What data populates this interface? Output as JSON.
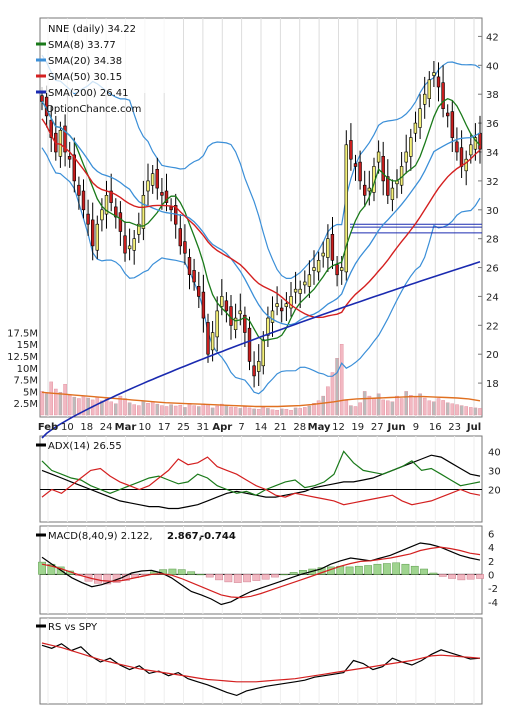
{
  "chart_data": [
    {
      "type": "candlestick",
      "panel": "price",
      "title": "NNE (daily) 34.22",
      "watermark": "OptionChance.com",
      "legend": [
        {
          "label": "SMA(8) 33.77",
          "color": "#1a7a1a"
        },
        {
          "label": "SMA(20) 34.38",
          "color": "#3b8fd8"
        },
        {
          "label": "SMA(50) 30.15",
          "color": "#d42020"
        },
        {
          "label": "SMA(200) 26.41",
          "color": "#1a2ab0"
        }
      ],
      "ylim": [
        16,
        43
      ],
      "yticks": [
        18,
        20,
        22,
        24,
        26,
        28,
        30,
        32,
        34,
        36,
        38,
        40,
        42
      ],
      "xlabels": [
        "Feb",
        "10",
        "18",
        "24",
        "Mar",
        "10",
        "17",
        "25",
        "31",
        "Apr",
        "7",
        "14",
        "21",
        "28",
        "May",
        "12",
        "19",
        "27",
        "Jun",
        "9",
        "16",
        "23",
        "Jul"
      ],
      "horizontal_levels": [
        29.0,
        28.8,
        28.4
      ],
      "closes": [
        37.5,
        36.5,
        35.0,
        34.0,
        35.5,
        34.0,
        33.5,
        32.0,
        31.0,
        30.0,
        29.0,
        27.5,
        29.0,
        30.0,
        31.0,
        30.5,
        29.5,
        28.5,
        27.0,
        27.5,
        28.0,
        29.0,
        31.0,
        32.0,
        32.5,
        31.5,
        31.0,
        30.5,
        30.0,
        29.0,
        27.5,
        27.0,
        25.5,
        25.0,
        24.0,
        22.5,
        20.0,
        21.5,
        23.0,
        24.0,
        23.0,
        22.0,
        22.5,
        23.0,
        21.5,
        19.5,
        18.5,
        19.5,
        21.0,
        22.5,
        23.0,
        23.5,
        23.0,
        23.5,
        24.0,
        24.5,
        24.5,
        25.0,
        25.5,
        26.0,
        26.5,
        27.0,
        28.0,
        26.5,
        25.5,
        26.0,
        34.5,
        33.5,
        33.0,
        32.0,
        31.0,
        31.5,
        33.0,
        34.0,
        32.0,
        31.0,
        31.5,
        32.0,
        33.0,
        34.0,
        35.0,
        36.0,
        37.0,
        38.0,
        39.0,
        39.5,
        38.5,
        37.0,
        36.5,
        35.0,
        34.0,
        33.0,
        33.5,
        34.5,
        35.0,
        34.2
      ]
    },
    {
      "type": "bar",
      "panel": "volume",
      "yticks": [
        "2.5M",
        "5M",
        "7.5M",
        "10M",
        "12.5M",
        "15M",
        "17.5M"
      ],
      "ylim": [
        0,
        18000000
      ],
      "values_millions": [
        5.0,
        4.5,
        7.0,
        5.5,
        4.8,
        6.5,
        4.2,
        3.8,
        3.5,
        4.0,
        3.6,
        3.2,
        3.8,
        3.0,
        3.4,
        2.8,
        2.4,
        4.0,
        3.5,
        2.6,
        2.2,
        2.0,
        3.0,
        2.5,
        2.8,
        2.3,
        2.0,
        1.8,
        2.2,
        1.9,
        2.1,
        1.6,
        2.5,
        2.0,
        1.8,
        2.4,
        2.2,
        1.5,
        1.9,
        2.3,
        2.0,
        1.7,
        1.6,
        1.4,
        1.8,
        1.5,
        1.3,
        1.2,
        1.6,
        1.4,
        1.1,
        1.0,
        1.3,
        1.2,
        1.0,
        1.5,
        1.4,
        1.6,
        1.9,
        2.5,
        3.0,
        4.0,
        6.0,
        9.0,
        12.0,
        15.0,
        3.0,
        2.0,
        1.8,
        2.6,
        5.0,
        4.0,
        3.5,
        4.5,
        3.2,
        3.0,
        2.8,
        4.0,
        3.5,
        5.0,
        4.2,
        3.8,
        4.5,
        3.6,
        3.0,
        2.8,
        3.5,
        3.1,
        2.6,
        2.4,
        2.2,
        2.0,
        1.8,
        1.6,
        1.5,
        1.4
      ],
      "volume_ma_millions": [
        4.8,
        4.6,
        4.4,
        4.2,
        4.0,
        3.8,
        3.6,
        3.4,
        3.2,
        3.0,
        2.8,
        2.6,
        2.5,
        2.4,
        2.3,
        2.2,
        2.1,
        2.0,
        1.9,
        1.8,
        1.8,
        1.8,
        1.9,
        2.0,
        2.2,
        2.5,
        2.8,
        3.2,
        3.4,
        3.5,
        3.6,
        3.7,
        3.8,
        3.9,
        3.9,
        3.8,
        3.7,
        3.6,
        3.4,
        3.0
      ]
    },
    {
      "type": "line",
      "panel": "adx",
      "label": "ADX(14) 26.55",
      "ylim": [
        5,
        46
      ],
      "yticks": [
        20,
        30,
        40
      ],
      "reference_line": 20,
      "series": [
        {
          "name": "ADX",
          "color": "#000000",
          "values": [
            30,
            28,
            26,
            24,
            22,
            20,
            18,
            16,
            14,
            13,
            12,
            11,
            11,
            10,
            10,
            11,
            12,
            14,
            16,
            18,
            19,
            18,
            17,
            16,
            16,
            17,
            18,
            19,
            21,
            22,
            23,
            24,
            24,
            25,
            26,
            28,
            30,
            32,
            34,
            36,
            38,
            37,
            34,
            31,
            28,
            27
          ]
        },
        {
          "name": "+DI",
          "color": "#1a7a1a",
          "values": [
            35,
            30,
            28,
            26,
            25,
            22,
            20,
            18,
            20,
            22,
            24,
            26,
            27,
            25,
            23,
            24,
            28,
            26,
            22,
            20,
            18,
            19,
            17,
            20,
            22,
            24,
            25,
            21,
            22,
            24,
            28,
            40,
            34,
            30,
            29,
            28,
            30,
            32,
            35,
            30,
            31,
            28,
            25,
            22,
            23,
            24
          ]
        },
        {
          "name": "-DI",
          "color": "#d42020",
          "values": [
            16,
            20,
            18,
            22,
            26,
            30,
            31,
            27,
            24,
            22,
            20,
            22,
            26,
            30,
            36,
            33,
            34,
            37,
            32,
            30,
            28,
            25,
            22,
            20,
            17,
            16,
            18,
            17,
            16,
            15,
            14,
            12,
            13,
            14,
            15,
            16,
            17,
            14,
            12,
            13,
            14,
            16,
            18,
            20,
            18,
            17
          ]
        }
      ]
    },
    {
      "type": "line",
      "panel": "macd",
      "label": "MACD(8,40,9) 2.122,",
      "values_label": [
        "2.867,",
        "-0.744"
      ],
      "values_label_colors": [
        "#d42020",
        "#1a2ab0"
      ],
      "ylim": [
        -5.5,
        6.5
      ],
      "yticks": [
        -4,
        -2,
        0,
        2,
        4,
        6
      ],
      "series": [
        {
          "name": "MACD",
          "color": "#000000",
          "values": [
            2.5,
            1.5,
            0.5,
            -0.5,
            -1.2,
            -1.8,
            -1.5,
            -1.0,
            -0.5,
            0.2,
            0.5,
            0.6,
            0.2,
            -0.5,
            -1.5,
            -2.5,
            -3.0,
            -3.6,
            -4.4,
            -4.0,
            -3.2,
            -2.5,
            -2.0,
            -1.5,
            -1.0,
            -0.5,
            0.0,
            0.4,
            0.8,
            1.5,
            2.0,
            2.4,
            2.2,
            2.0,
            2.4,
            2.8,
            3.4,
            4.0,
            4.6,
            4.4,
            4.0,
            3.4,
            2.8,
            2.4,
            2.1
          ]
        },
        {
          "name": "Signal",
          "color": "#d42020",
          "values": [
            1.5,
            1.2,
            0.8,
            0.3,
            -0.2,
            -0.6,
            -0.9,
            -1.0,
            -0.9,
            -0.6,
            -0.3,
            0.0,
            0.1,
            -0.1,
            -0.6,
            -1.2,
            -1.8,
            -2.4,
            -3.0,
            -3.3,
            -3.4,
            -3.2,
            -2.8,
            -2.3,
            -1.8,
            -1.3,
            -0.8,
            -0.3,
            0.2,
            0.7,
            1.2,
            1.6,
            1.9,
            2.0,
            2.2,
            2.4,
            2.7,
            3.0,
            3.5,
            3.8,
            4.0,
            3.8,
            3.5,
            3.1,
            2.9
          ]
        },
        {
          "name": "Histogram",
          "color": "#e88a9a",
          "values": [
            1.8,
            1.5,
            1.1,
            0.5,
            -0.2,
            -1.0,
            -1.3,
            -1.4,
            -1.2,
            -0.9,
            -0.5,
            -0.1,
            0.4,
            0.7,
            0.8,
            0.7,
            0.4,
            0.0,
            -0.4,
            -0.8,
            -1.1,
            -1.2,
            -1.1,
            -0.9,
            -0.7,
            -0.4,
            0.0,
            0.3,
            0.6,
            0.8,
            1.0,
            1.1,
            1.2,
            1.1,
            1.2,
            1.3,
            1.5,
            1.6,
            1.7,
            1.5,
            1.2,
            0.8,
            0.2,
            -0.3,
            -0.6,
            -0.8,
            -0.7,
            -0.6
          ]
        }
      ]
    },
    {
      "type": "line",
      "panel": "rs",
      "label": "RS vs SPY",
      "ylim": [
        0,
        10
      ],
      "series": [
        {
          "name": "RS",
          "color": "#000000",
          "values": [
            7.2,
            6.8,
            7.4,
            6.5,
            7.0,
            5.8,
            5.0,
            5.5,
            4.6,
            4.0,
            4.5,
            3.5,
            3.8,
            3.2,
            3.6,
            2.8,
            2.4,
            2.0,
            1.5,
            1.0,
            0.6,
            1.2,
            1.5,
            1.8,
            2.0,
            2.2,
            2.4,
            2.6,
            3.0,
            3.2,
            3.4,
            3.6,
            5.2,
            4.8,
            4.0,
            4.4,
            5.5,
            5.0,
            4.6,
            5.2,
            6.0,
            6.6,
            6.2,
            5.8,
            5.4,
            5.5
          ]
        },
        {
          "name": "RS MA",
          "color": "#d42020",
          "values": [
            7.5,
            7.2,
            6.9,
            6.5,
            6.1,
            5.7,
            5.3,
            5.0,
            4.7,
            4.4,
            4.1,
            3.9,
            3.7,
            3.5,
            3.3,
            3.1,
            2.9,
            2.7,
            2.6,
            2.5,
            2.4,
            2.4,
            2.4,
            2.5,
            2.6,
            2.7,
            2.8,
            3.0,
            3.2,
            3.4,
            3.6,
            3.8,
            4.0,
            4.2,
            4.4,
            4.6,
            4.8,
            5.0,
            5.2,
            5.5,
            5.8,
            5.9,
            5.8,
            5.7,
            5.6,
            5.5
          ]
        }
      ]
    }
  ]
}
